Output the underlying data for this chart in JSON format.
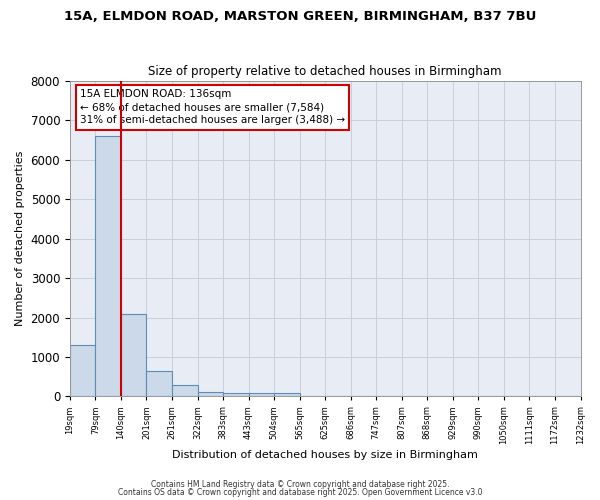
{
  "title1": "15A, ELMDON ROAD, MARSTON GREEN, BIRMINGHAM, B37 7BU",
  "title2": "Size of property relative to detached houses in Birmingham",
  "xlabel": "Distribution of detached houses by size in Birmingham",
  "ylabel": "Number of detached properties",
  "bar_values": [
    1300,
    6600,
    2100,
    650,
    300,
    120,
    80,
    80,
    80,
    0,
    0,
    0,
    0,
    0,
    0,
    0,
    0,
    0,
    0,
    0
  ],
  "bin_labels": [
    "19sqm",
    "79sqm",
    "140sqm",
    "201sqm",
    "261sqm",
    "322sqm",
    "383sqm",
    "443sqm",
    "504sqm",
    "565sqm",
    "625sqm",
    "686sqm",
    "747sqm",
    "807sqm",
    "868sqm",
    "929sqm",
    "990sqm",
    "1050sqm",
    "1111sqm",
    "1172sqm",
    "1232sqm"
  ],
  "bar_color": "#ccd9e8",
  "bar_edge_color": "#5b8db8",
  "grid_color": "#c8d0dc",
  "bg_color": "#e8edf5",
  "fig_bg_color": "#ffffff",
  "red_line_color": "#cc0000",
  "annotation_text": "15A ELMDON ROAD: 136sqm\n← 68% of detached houses are smaller (7,584)\n31% of semi-detached houses are larger (3,488) →",
  "annotation_box_color": "#cc0000",
  "ylim": [
    0,
    8000
  ],
  "yticks": [
    0,
    1000,
    2000,
    3000,
    4000,
    5000,
    6000,
    7000,
    8000
  ],
  "footer1": "Contains HM Land Registry data © Crown copyright and database right 2025.",
  "footer2": "Contains OS data © Crown copyright and database right 2025. Open Government Licence v3.0"
}
